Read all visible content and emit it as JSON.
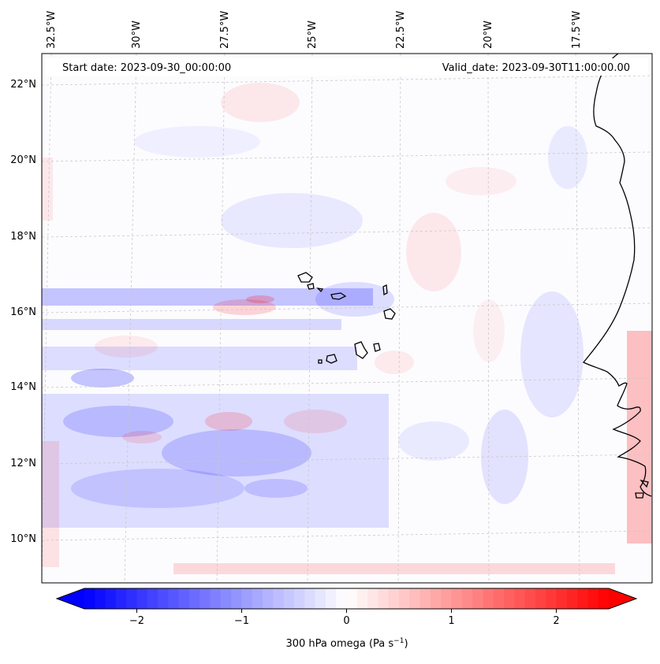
{
  "map": {
    "start_label": "Start date: 2023-09-30_00:00:00",
    "valid_label": "Valid_date: 2023-09-30T11:00:00.00",
    "lon_labels": [
      "32.5°W",
      "30°W",
      "27.5°W",
      "25°W",
      "22.5°W",
      "20°W",
      "17.5°W"
    ],
    "lat_labels": [
      "22°N",
      "20°N",
      "18°N",
      "16°N",
      "14°N",
      "12°N",
      "10°N"
    ],
    "colors": {
      "negative": "#0000ff",
      "neutral": "#ffffff",
      "positive": "#ff0000",
      "coastline": "#000000",
      "gridline": "#c8c8c8"
    }
  },
  "colorbar": {
    "label_main": "300 hPa omega (Pa s",
    "label_exp": "−1",
    "label_close": ")",
    "ticks": [
      "−2",
      "−1",
      "0",
      "1",
      "2"
    ],
    "tick_values": [
      -2,
      -1,
      0,
      1,
      2
    ],
    "range": [
      -2.5,
      2.5
    ],
    "extend": "both"
  }
}
